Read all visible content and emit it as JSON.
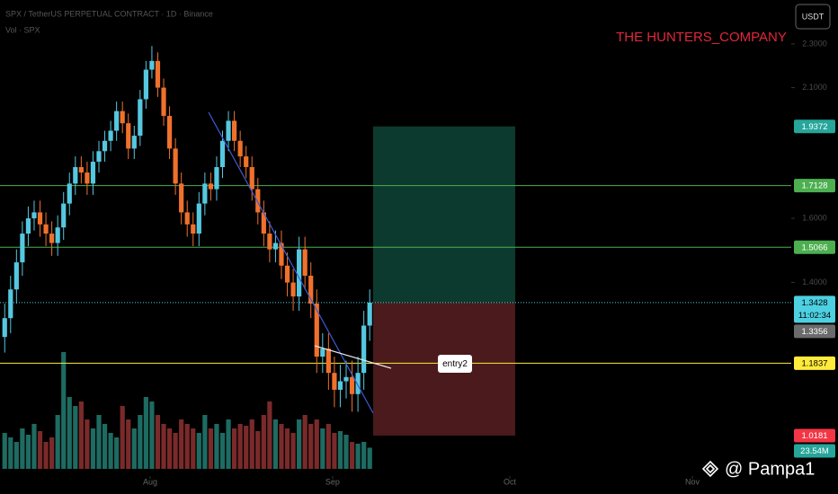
{
  "header": {
    "symbol": "SPX / TetherUS PERPETUAL CONTRACT · 1D · Binance",
    "volume_label": "Vol · SPX",
    "currency_button": "USDT",
    "brand": "THE HUNTERS_COMPANY",
    "watermark": "@ Pampa1"
  },
  "chart_data": {
    "type": "candlestick",
    "log_scale": true,
    "ylim": [
      0.936,
      2.52
    ],
    "yticks": [
      {
        "value": 2.3,
        "label": "2.3000"
      },
      {
        "value": 2.1,
        "label": "2.1000"
      },
      {
        "value": 1.6,
        "label": "1.6000"
      },
      {
        "value": 1.4,
        "label": "1.4000"
      }
    ],
    "xlim": [
      -0.8,
      133.6
    ],
    "xticks": [
      {
        "value": 24.7,
        "label": "Aug"
      },
      {
        "value": 55.7,
        "label": "Sep"
      },
      {
        "value": 85.8,
        "label": "Oct"
      },
      {
        "value": 116.8,
        "label": "Nov"
      }
    ],
    "up_color": "#55c8e0",
    "down_color": "#f0712c",
    "open": [
      1.25,
      1.3,
      1.38,
      1.46,
      1.55,
      1.6,
      1.62,
      1.58,
      1.55,
      1.52,
      1.57,
      1.65,
      1.72,
      1.78,
      1.76,
      1.72,
      1.8,
      1.84,
      1.88,
      1.92,
      2.0,
      1.95,
      1.85,
      1.9,
      2.05,
      2.18,
      2.22,
      2.1,
      1.98,
      1.85,
      1.72,
      1.62,
      1.58,
      1.55,
      1.65,
      1.72,
      1.7,
      1.78,
      1.88,
      1.96,
      1.88,
      1.82,
      1.78,
      1.7,
      1.62,
      1.55,
      1.5,
      1.52,
      1.45,
      1.4,
      1.36,
      1.5,
      1.42,
      1.34,
      1.2,
      1.22,
      1.16,
      1.12,
      1.14,
      1.15,
      1.11,
      1.16,
      1.28
    ],
    "high": [
      1.34,
      1.42,
      1.5,
      1.59,
      1.64,
      1.66,
      1.66,
      1.62,
      1.59,
      1.61,
      1.69,
      1.76,
      1.82,
      1.82,
      1.8,
      1.84,
      1.88,
      1.92,
      1.96,
      2.04,
      2.04,
      1.99,
      1.94,
      2.09,
      2.22,
      2.29,
      2.26,
      2.14,
      2.02,
      1.89,
      1.76,
      1.66,
      1.62,
      1.69,
      1.76,
      1.76,
      1.82,
      1.92,
      2.0,
      2.0,
      1.92,
      1.86,
      1.82,
      1.74,
      1.66,
      1.59,
      1.56,
      1.56,
      1.49,
      1.44,
      1.54,
      1.54,
      1.46,
      1.38,
      1.26,
      1.26,
      1.2,
      1.18,
      1.19,
      1.19,
      1.2,
      1.32,
      1.38
    ],
    "low": [
      1.21,
      1.26,
      1.34,
      1.42,
      1.51,
      1.56,
      1.54,
      1.51,
      1.48,
      1.48,
      1.53,
      1.61,
      1.68,
      1.72,
      1.68,
      1.68,
      1.76,
      1.8,
      1.84,
      1.88,
      1.91,
      1.81,
      1.81,
      1.86,
      2.01,
      2.14,
      2.06,
      1.94,
      1.81,
      1.68,
      1.58,
      1.54,
      1.51,
      1.51,
      1.61,
      1.66,
      1.66,
      1.74,
      1.84,
      1.84,
      1.78,
      1.74,
      1.66,
      1.58,
      1.51,
      1.46,
      1.46,
      1.41,
      1.36,
      1.32,
      1.32,
      1.38,
      1.3,
      1.16,
      1.16,
      1.12,
      1.08,
      1.08,
      1.1,
      1.07,
      1.07,
      1.12,
      1.24
    ],
    "close": [
      1.3,
      1.38,
      1.46,
      1.55,
      1.6,
      1.62,
      1.58,
      1.55,
      1.52,
      1.57,
      1.65,
      1.72,
      1.78,
      1.76,
      1.72,
      1.8,
      1.84,
      1.88,
      1.92,
      2.0,
      1.95,
      1.85,
      1.9,
      2.05,
      2.18,
      2.22,
      2.1,
      1.98,
      1.85,
      1.72,
      1.62,
      1.58,
      1.55,
      1.65,
      1.72,
      1.7,
      1.78,
      1.88,
      1.96,
      1.88,
      1.82,
      1.78,
      1.7,
      1.62,
      1.55,
      1.5,
      1.52,
      1.45,
      1.4,
      1.36,
      1.5,
      1.42,
      1.34,
      1.2,
      1.22,
      1.16,
      1.12,
      1.14,
      1.15,
      1.11,
      1.16,
      1.28,
      1.3428
    ],
    "volume": {
      "values": [
        40,
        35,
        30,
        45,
        38,
        50,
        42,
        30,
        35,
        60,
        130,
        80,
        70,
        75,
        55,
        45,
        60,
        50,
        40,
        35,
        70,
        55,
        45,
        60,
        80,
        75,
        60,
        50,
        45,
        40,
        55,
        50,
        45,
        40,
        60,
        45,
        50,
        40,
        55,
        45,
        50,
        48,
        55,
        42,
        60,
        75,
        55,
        50,
        45,
        40,
        55,
        60,
        50,
        55,
        45,
        50,
        40,
        42,
        38,
        30,
        28,
        30,
        23.54
      ],
      "vlim": [
        0,
        140
      ],
      "up_color": "#1e6b62",
      "down_color": "#7a2a2a",
      "last_label": "23.54M",
      "last_color": "#26a69a"
    },
    "price_tags": [
      {
        "value": 1.9372,
        "color": "#26a69a",
        "text_color": "#ffffff"
      },
      {
        "value": 1.7128,
        "color": "#4caf50",
        "text_color": "#ffffff",
        "line": "solid"
      },
      {
        "value": 1.5066,
        "color": "#4caf50",
        "text_color": "#ffffff",
        "line": "solid"
      },
      {
        "value": 1.3428,
        "color": "#4dd0e1",
        "text_color": "#000000",
        "line": "dotted",
        "countdown": "11:02:34"
      },
      {
        "value": 1.3356,
        "color": "#6b6b6b",
        "text_color": "#ffffff"
      },
      {
        "value": 1.1837,
        "color": "#ffeb3b",
        "text_color": "#000000",
        "line": "solid"
      },
      {
        "value": 1.0181,
        "color": "#f23645",
        "text_color": "#ffffff"
      }
    ],
    "position": {
      "target": 1.9372,
      "entry": 1.3428,
      "stop": 1.0181,
      "profit_color": "#0d3a2e",
      "loss_color": "#4a1a1c"
    },
    "annotation": "entry2"
  }
}
